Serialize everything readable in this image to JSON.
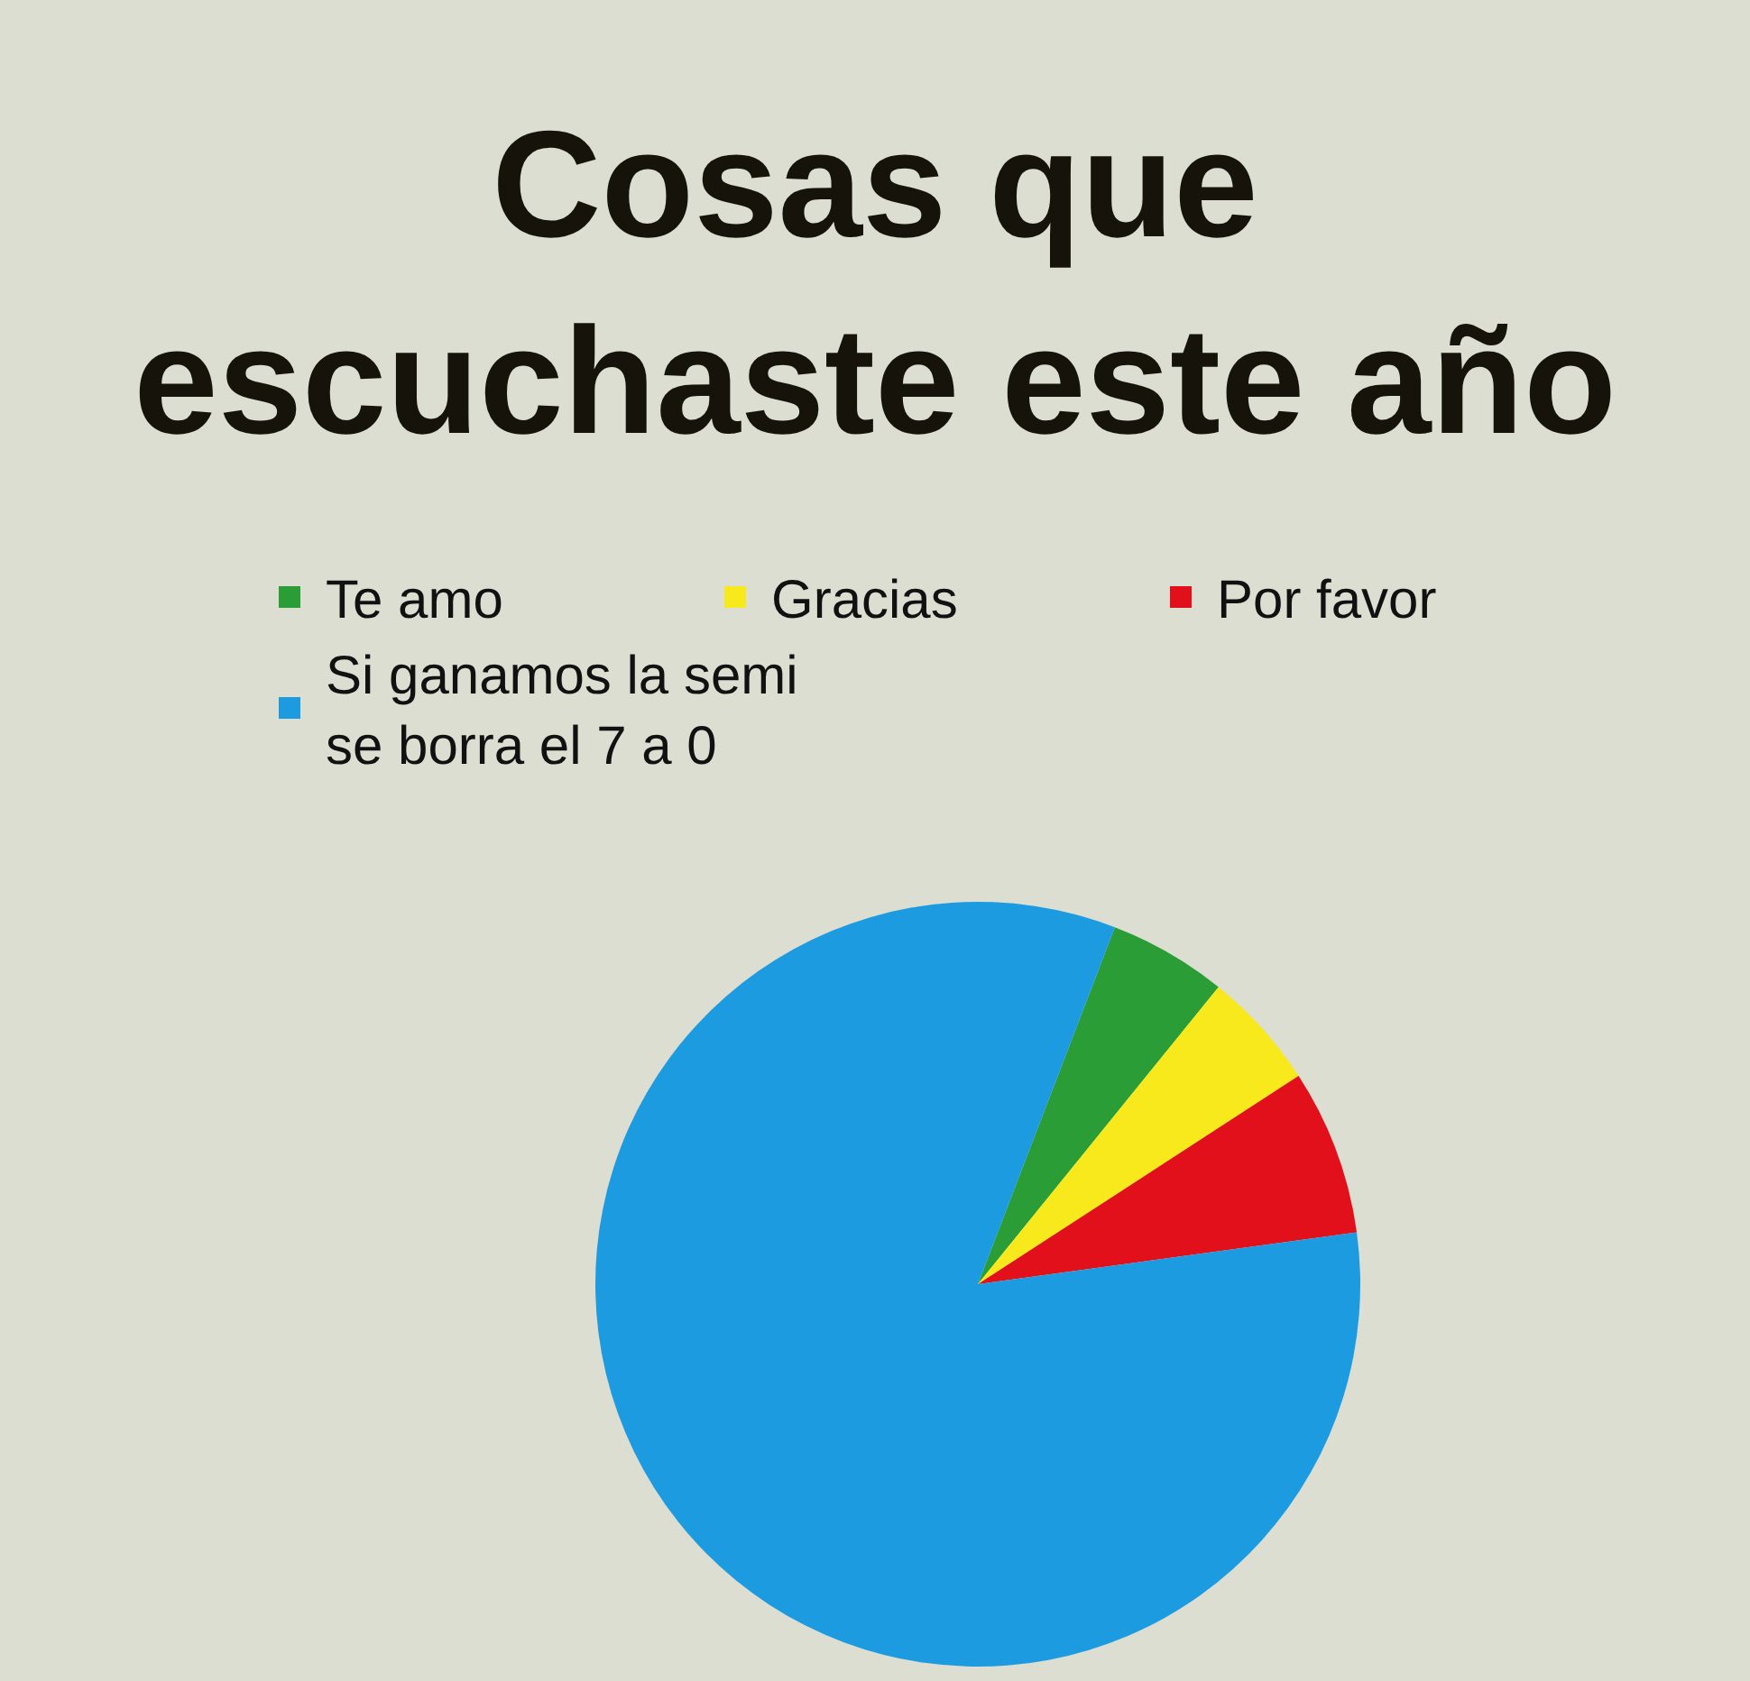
{
  "chart_data": {
    "type": "pie",
    "title": "Cosas que\nescuchaste este año",
    "categories": [
      "Te amo",
      "Gracias",
      "Por favor",
      "Si ganamos la semi\nse borra el 7 a 0"
    ],
    "values": [
      5,
      5,
      7,
      83
    ],
    "colors": [
      "#2a9d36",
      "#f7e91b",
      "#e1101b",
      "#1d9be0"
    ],
    "legend": "top"
  }
}
